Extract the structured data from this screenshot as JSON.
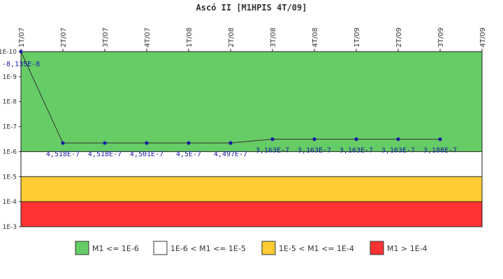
{
  "chart_data": {
    "type": "line",
    "title": "Ascó II [M1HPIS 4T/09]",
    "xlabel": "",
    "ylabel": "",
    "y_scale": "log",
    "y_axis_inverted": true,
    "ylim": [
      1e-10,
      0.001
    ],
    "y_ticks": [
      "1E-10",
      "1E-9",
      "1E-8",
      "1E-7",
      "1E-6",
      "1E-5",
      "1E-4",
      "1E-3"
    ],
    "categories": [
      "1T/07",
      "2T/07",
      "3T/07",
      "4T/07",
      "1T/08",
      "2T/08",
      "3T/08",
      "4T/08",
      "1T/09",
      "2T/09",
      "3T/09",
      "4T/09"
    ],
    "series": [
      {
        "values": [
          8.135e-08,
          4.518e-07,
          4.518e-07,
          4.501e-07,
          4.5e-07,
          4.497e-07,
          3.163e-07,
          3.163e-07,
          3.163e-07,
          3.163e-07,
          3.188e-07,
          null
        ],
        "labels": [
          "-8,135E-8",
          "4,518E-7",
          "4,518E-7",
          "4,501E-7",
          "4,5E-7",
          "4,497E-7",
          "3,163E-7",
          "3,163E-7",
          "3,163E-7",
          "3,163E-7",
          "3,188E-7",
          ""
        ],
        "plot_at_top": [
          true,
          false,
          false,
          false,
          false,
          false,
          false,
          false,
          false,
          false,
          false,
          false
        ],
        "color": "#1a1aa6",
        "line_color": "#333333"
      }
    ],
    "bands": [
      {
        "from": 1e-10,
        "to": 1e-06,
        "color": "#66cc66",
        "label": "M1 <= 1E-6"
      },
      {
        "from": 1e-06,
        "to": 1e-05,
        "color": "#ffffff",
        "label": "1E-6 < M1 <= 1E-5"
      },
      {
        "from": 1e-05,
        "to": 0.0001,
        "color": "#ffcc33",
        "label": "1E-5 < M1 <= 1E-4"
      },
      {
        "from": 0.0001,
        "to": 0.001,
        "color": "#ff3333",
        "label": "M1 > 1E-4"
      }
    ],
    "legend": "bottom",
    "grid": false
  }
}
